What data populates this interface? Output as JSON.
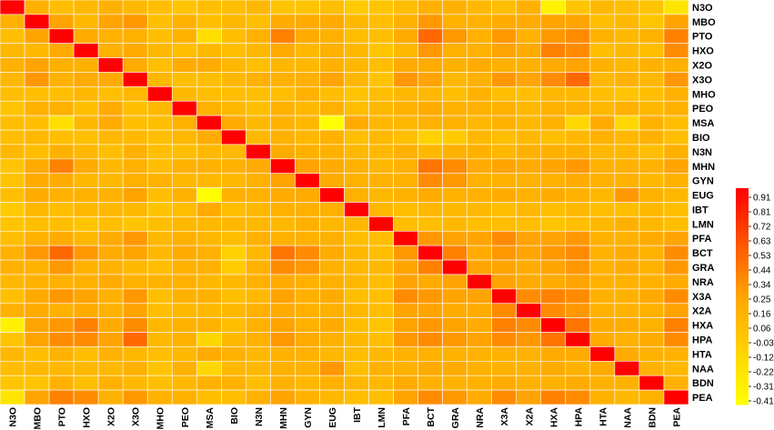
{
  "chart_data": {
    "type": "heatmap",
    "labels": [
      "N3O",
      "MBO",
      "PTO",
      "HXO",
      "X2O",
      "X3O",
      "MHO",
      "PEO",
      "MSA",
      "BIO",
      "N3N",
      "MHN",
      "GYN",
      "EUG",
      "IBT",
      "LMN",
      "PFA",
      "BCT",
      "GRA",
      "NRA",
      "X3A",
      "X2A",
      "HXA",
      "HPA",
      "HTA",
      "NAA",
      "BDN",
      "PEA"
    ],
    "matrix": [
      [
        1.0,
        0.2,
        0.1,
        0.15,
        0.2,
        0.15,
        0.1,
        0.05,
        0.1,
        0.1,
        0.15,
        0.05,
        0.05,
        0.1,
        0.0,
        0.05,
        0.1,
        0.2,
        0.2,
        0.15,
        0.1,
        0.2,
        -0.3,
        0.05,
        0.15,
        0.1,
        0.05,
        -0.2
      ],
      [
        0.2,
        1.0,
        0.3,
        0.15,
        0.3,
        0.35,
        0.1,
        0.2,
        0.1,
        0.15,
        0.1,
        0.25,
        0.25,
        0.25,
        0.15,
        0.1,
        0.2,
        0.35,
        0.2,
        0.2,
        0.25,
        0.25,
        0.3,
        0.3,
        0.1,
        0.15,
        0.05,
        0.3
      ],
      [
        0.1,
        0.3,
        1.0,
        0.25,
        0.2,
        0.2,
        0.1,
        0.2,
        -0.15,
        0.1,
        0.2,
        0.45,
        0.25,
        0.2,
        0.1,
        0.1,
        0.25,
        0.55,
        0.35,
        0.2,
        0.35,
        0.2,
        0.35,
        0.4,
        0.2,
        0.15,
        0.2,
        0.45
      ],
      [
        0.15,
        0.15,
        0.25,
        1.0,
        0.2,
        0.25,
        0.15,
        0.1,
        0.15,
        0.1,
        0.15,
        0.25,
        0.15,
        0.2,
        0.15,
        0.05,
        0.15,
        0.35,
        0.2,
        0.2,
        0.3,
        0.25,
        0.45,
        0.4,
        0.1,
        0.15,
        0.1,
        0.4
      ],
      [
        0.2,
        0.3,
        0.2,
        0.2,
        1.0,
        0.25,
        0.1,
        0.25,
        0.25,
        0.15,
        0.1,
        0.15,
        0.15,
        0.2,
        0.15,
        0.1,
        0.25,
        0.25,
        0.2,
        0.25,
        0.2,
        0.2,
        0.25,
        0.3,
        0.2,
        0.15,
        0.2,
        0.2
      ],
      [
        0.15,
        0.35,
        0.2,
        0.25,
        0.25,
        1.0,
        0.15,
        0.1,
        0.1,
        0.15,
        0.2,
        0.2,
        0.2,
        0.3,
        0.15,
        0.05,
        0.35,
        0.3,
        0.15,
        0.2,
        0.35,
        0.3,
        0.4,
        0.55,
        0.15,
        0.2,
        0.15,
        0.35
      ],
      [
        0.1,
        0.1,
        0.1,
        0.15,
        0.1,
        0.15,
        1.0,
        0.15,
        0.1,
        0.1,
        0.1,
        0.1,
        0.2,
        0.1,
        0.05,
        0.1,
        0.15,
        0.15,
        0.1,
        0.2,
        0.1,
        0.1,
        0.15,
        0.15,
        0.1,
        0.05,
        0.1,
        0.2
      ],
      [
        0.05,
        0.2,
        0.2,
        0.1,
        0.25,
        0.1,
        0.15,
        1.0,
        0.2,
        0.15,
        0.1,
        0.2,
        0.15,
        0.2,
        0.1,
        0.15,
        0.2,
        0.25,
        0.2,
        0.2,
        0.2,
        0.15,
        0.2,
        0.2,
        0.15,
        0.2,
        0.15,
        0.2
      ],
      [
        0.1,
        0.1,
        -0.15,
        0.15,
        0.25,
        0.1,
        0.1,
        0.2,
        1.0,
        0.25,
        0.15,
        0.2,
        0.15,
        -0.4,
        0.25,
        0.15,
        0.15,
        0.2,
        0.2,
        0.15,
        0.2,
        0.15,
        0.2,
        -0.1,
        0.25,
        -0.1,
        0.2,
        0.1
      ],
      [
        0.1,
        0.15,
        0.1,
        0.1,
        0.15,
        0.15,
        0.1,
        0.15,
        0.25,
        1.0,
        0.15,
        0.2,
        0.15,
        0.2,
        0.1,
        0.15,
        0.1,
        -0.05,
        0.0,
        0.15,
        0.1,
        0.15,
        0.1,
        0.15,
        0.2,
        0.15,
        0.2,
        0.1
      ],
      [
        0.15,
        0.1,
        0.2,
        0.15,
        0.1,
        0.2,
        0.1,
        0.1,
        0.15,
        0.15,
        1.0,
        0.25,
        0.2,
        0.2,
        0.15,
        0.15,
        0.2,
        0.15,
        0.2,
        0.2,
        0.15,
        0.2,
        0.2,
        0.2,
        0.15,
        0.15,
        0.1,
        0.2
      ],
      [
        0.05,
        0.25,
        0.45,
        0.25,
        0.15,
        0.2,
        0.1,
        0.2,
        0.2,
        0.2,
        0.25,
        1.0,
        0.3,
        0.25,
        0.2,
        0.15,
        0.2,
        0.5,
        0.4,
        0.25,
        0.3,
        0.25,
        0.3,
        0.35,
        0.2,
        0.2,
        0.2,
        0.3
      ],
      [
        0.05,
        0.25,
        0.25,
        0.15,
        0.15,
        0.2,
        0.2,
        0.15,
        0.15,
        0.15,
        0.2,
        0.3,
        1.0,
        0.25,
        0.2,
        0.2,
        0.2,
        0.4,
        0.35,
        0.2,
        0.2,
        0.2,
        0.2,
        0.25,
        0.2,
        0.2,
        0.15,
        0.2
      ],
      [
        0.1,
        0.25,
        0.2,
        0.2,
        0.2,
        0.3,
        0.1,
        0.2,
        -0.4,
        0.2,
        0.2,
        0.25,
        0.25,
        1.0,
        0.2,
        0.15,
        0.2,
        0.25,
        0.2,
        0.2,
        0.25,
        0.2,
        0.25,
        0.2,
        0.15,
        0.35,
        0.2,
        0.15
      ],
      [
        0.0,
        0.15,
        0.1,
        0.15,
        0.15,
        0.15,
        0.05,
        0.1,
        0.25,
        0.1,
        0.15,
        0.2,
        0.2,
        0.2,
        1.0,
        0.15,
        0.1,
        0.15,
        0.15,
        0.15,
        0.1,
        0.15,
        0.1,
        0.15,
        0.1,
        0.1,
        0.15,
        0.1
      ],
      [
        0.05,
        0.1,
        0.1,
        0.05,
        0.1,
        0.05,
        0.1,
        0.15,
        0.15,
        0.15,
        0.15,
        0.15,
        0.2,
        0.15,
        0.15,
        1.0,
        0.1,
        0.1,
        0.15,
        0.1,
        0.1,
        0.1,
        0.05,
        0.1,
        0.15,
        0.2,
        0.15,
        0.1
      ],
      [
        0.1,
        0.2,
        0.25,
        0.15,
        0.25,
        0.35,
        0.15,
        0.2,
        0.15,
        0.1,
        0.2,
        0.2,
        0.2,
        0.2,
        0.1,
        0.1,
        1.0,
        0.35,
        0.3,
        0.3,
        0.4,
        0.3,
        0.3,
        0.35,
        0.2,
        0.2,
        0.25,
        0.3
      ],
      [
        0.2,
        0.35,
        0.55,
        0.35,
        0.25,
        0.3,
        0.15,
        0.25,
        0.2,
        -0.05,
        0.15,
        0.5,
        0.4,
        0.25,
        0.15,
        0.1,
        0.35,
        1.0,
        0.45,
        0.25,
        0.35,
        0.3,
        0.35,
        0.4,
        0.2,
        0.25,
        0.2,
        0.4
      ],
      [
        0.2,
        0.2,
        0.35,
        0.2,
        0.2,
        0.15,
        0.1,
        0.2,
        0.2,
        0.0,
        0.2,
        0.4,
        0.35,
        0.2,
        0.15,
        0.15,
        0.3,
        0.45,
        1.0,
        0.3,
        0.3,
        0.25,
        0.3,
        0.35,
        0.2,
        0.25,
        0.2,
        0.35
      ],
      [
        0.15,
        0.2,
        0.2,
        0.2,
        0.25,
        0.2,
        0.2,
        0.2,
        0.15,
        0.15,
        0.2,
        0.25,
        0.2,
        0.2,
        0.15,
        0.1,
        0.3,
        0.25,
        0.3,
        1.0,
        0.3,
        0.25,
        0.25,
        0.3,
        0.2,
        0.2,
        0.2,
        0.25
      ],
      [
        0.1,
        0.25,
        0.35,
        0.3,
        0.2,
        0.35,
        0.1,
        0.2,
        0.2,
        0.1,
        0.15,
        0.3,
        0.2,
        0.25,
        0.1,
        0.1,
        0.4,
        0.35,
        0.3,
        0.3,
        1.0,
        0.4,
        0.45,
        0.4,
        0.2,
        0.2,
        0.25,
        0.4
      ],
      [
        0.2,
        0.25,
        0.2,
        0.25,
        0.2,
        0.3,
        0.1,
        0.15,
        0.15,
        0.15,
        0.2,
        0.25,
        0.2,
        0.2,
        0.15,
        0.1,
        0.3,
        0.3,
        0.25,
        0.25,
        0.4,
        1.0,
        0.4,
        0.35,
        0.2,
        0.2,
        0.2,
        0.3
      ],
      [
        -0.3,
        0.3,
        0.35,
        0.45,
        0.25,
        0.4,
        0.15,
        0.2,
        0.2,
        0.1,
        0.2,
        0.3,
        0.2,
        0.25,
        0.1,
        0.05,
        0.3,
        0.35,
        0.3,
        0.25,
        0.45,
        0.4,
        1.0,
        0.5,
        0.25,
        0.25,
        0.2,
        0.45
      ],
      [
        0.05,
        0.3,
        0.4,
        0.4,
        0.3,
        0.55,
        0.15,
        0.2,
        -0.1,
        0.15,
        0.2,
        0.35,
        0.25,
        0.2,
        0.15,
        0.1,
        0.35,
        0.4,
        0.35,
        0.3,
        0.4,
        0.35,
        0.5,
        1.0,
        0.25,
        0.2,
        0.25,
        0.4
      ],
      [
        0.15,
        0.1,
        0.2,
        0.1,
        0.2,
        0.15,
        0.1,
        0.15,
        0.25,
        0.2,
        0.15,
        0.2,
        0.2,
        0.15,
        0.1,
        0.15,
        0.2,
        0.2,
        0.2,
        0.2,
        0.2,
        0.2,
        0.25,
        0.25,
        1.0,
        0.25,
        0.2,
        0.2
      ],
      [
        0.1,
        0.15,
        0.15,
        0.15,
        0.15,
        0.2,
        0.05,
        0.2,
        -0.1,
        0.15,
        0.15,
        0.2,
        0.2,
        0.35,
        0.1,
        0.2,
        0.2,
        0.25,
        0.25,
        0.2,
        0.2,
        0.2,
        0.25,
        0.2,
        0.25,
        1.0,
        0.2,
        0.15
      ],
      [
        0.05,
        0.05,
        0.2,
        0.1,
        0.2,
        0.15,
        0.1,
        0.15,
        0.2,
        0.2,
        0.1,
        0.2,
        0.15,
        0.2,
        0.15,
        0.15,
        0.25,
        0.2,
        0.2,
        0.2,
        0.25,
        0.2,
        0.2,
        0.25,
        0.2,
        0.2,
        1.0,
        0.2
      ],
      [
        -0.2,
        0.3,
        0.45,
        0.4,
        0.2,
        0.35,
        0.2,
        0.2,
        0.1,
        0.1,
        0.2,
        0.3,
        0.2,
        0.15,
        0.1,
        0.1,
        0.3,
        0.4,
        0.35,
        0.25,
        0.4,
        0.3,
        0.45,
        0.4,
        0.2,
        0.15,
        0.2,
        1.0
      ]
    ],
    "colorbar": {
      "ticks": [
        "0.91",
        "0.81",
        "0.72",
        "0.63",
        "0.53",
        "0.44",
        "0.34",
        "0.25",
        "0.16",
        "0.06",
        "-0.03",
        "-0.12",
        "-0.22",
        "-0.31",
        "-0.41"
      ],
      "min": -0.41,
      "max": 1.0
    },
    "colors": {
      "low": "#ffff00",
      "mid": "#ffa500",
      "high": "#ff0000",
      "grid": "#ffffff"
    },
    "title": "",
    "xlabel": "",
    "ylabel": ""
  }
}
